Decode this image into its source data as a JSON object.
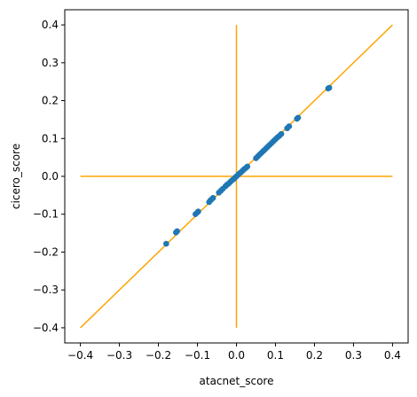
{
  "chart_data": {
    "type": "scatter",
    "xlabel": "atacnet_score",
    "ylabel": "cicero_score",
    "xlim": [
      -0.44,
      0.44
    ],
    "ylim": [
      -0.44,
      0.44
    ],
    "xticks": [
      -0.4,
      -0.3,
      -0.2,
      -0.1,
      0.0,
      0.1,
      0.2,
      0.3,
      0.4
    ],
    "yticks": [
      -0.4,
      -0.3,
      -0.2,
      -0.1,
      0.0,
      0.1,
      0.2,
      0.3,
      0.4
    ],
    "xtick_labels": [
      "−0.4",
      "−0.3",
      "−0.2",
      "−0.1",
      "0.0",
      "0.1",
      "0.2",
      "0.3",
      "0.4"
    ],
    "ytick_labels": [
      "−0.4",
      "−0.3",
      "−0.2",
      "−0.1",
      "0.0",
      "0.1",
      "0.2",
      "0.3",
      "0.4"
    ],
    "grid": false,
    "colors": {
      "points": "#1f77b4",
      "reference_lines": "#ffa500"
    },
    "reference_lines": [
      {
        "name": "diagonal",
        "x": [
          -0.4,
          0.4
        ],
        "y": [
          -0.4,
          0.4
        ]
      },
      {
        "name": "horizontal-zero",
        "x": [
          -0.4,
          0.4
        ],
        "y": [
          0.0,
          0.0
        ]
      },
      {
        "name": "vertical-zero",
        "x": [
          0.0,
          0.0
        ],
        "y": [
          -0.4,
          0.4
        ]
      }
    ],
    "points": [
      [
        -0.18,
        -0.178
      ],
      [
        -0.155,
        -0.148
      ],
      [
        -0.152,
        -0.145
      ],
      [
        -0.105,
        -0.1
      ],
      [
        -0.1,
        -0.095
      ],
      [
        -0.098,
        -0.093
      ],
      [
        -0.07,
        -0.068
      ],
      [
        -0.067,
        -0.064
      ],
      [
        -0.064,
        -0.061
      ],
      [
        -0.06,
        -0.057
      ],
      [
        -0.045,
        -0.043
      ],
      [
        -0.04,
        -0.038
      ],
      [
        -0.035,
        -0.033
      ],
      [
        -0.028,
        -0.026
      ],
      [
        -0.024,
        -0.022
      ],
      [
        -0.02,
        -0.019
      ],
      [
        -0.016,
        -0.015
      ],
      [
        -0.012,
        -0.011
      ],
      [
        -0.008,
        -0.008
      ],
      [
        -0.004,
        -0.004
      ],
      [
        0.0,
        0.0
      ],
      [
        0.004,
        0.004
      ],
      [
        0.008,
        0.008
      ],
      [
        0.012,
        0.011
      ],
      [
        0.016,
        0.015
      ],
      [
        0.02,
        0.019
      ],
      [
        0.024,
        0.022
      ],
      [
        0.028,
        0.026
      ],
      [
        0.05,
        0.048
      ],
      [
        0.055,
        0.053
      ],
      [
        0.06,
        0.058
      ],
      [
        0.065,
        0.063
      ],
      [
        0.07,
        0.068
      ],
      [
        0.075,
        0.073
      ],
      [
        0.08,
        0.078
      ],
      [
        0.085,
        0.083
      ],
      [
        0.09,
        0.088
      ],
      [
        0.095,
        0.093
      ],
      [
        0.1,
        0.098
      ],
      [
        0.105,
        0.103
      ],
      [
        0.11,
        0.107
      ],
      [
        0.115,
        0.112
      ],
      [
        0.13,
        0.127
      ],
      [
        0.135,
        0.132
      ],
      [
        0.155,
        0.152
      ],
      [
        0.158,
        0.155
      ],
      [
        0.235,
        0.232
      ],
      [
        0.238,
        0.234
      ]
    ]
  }
}
